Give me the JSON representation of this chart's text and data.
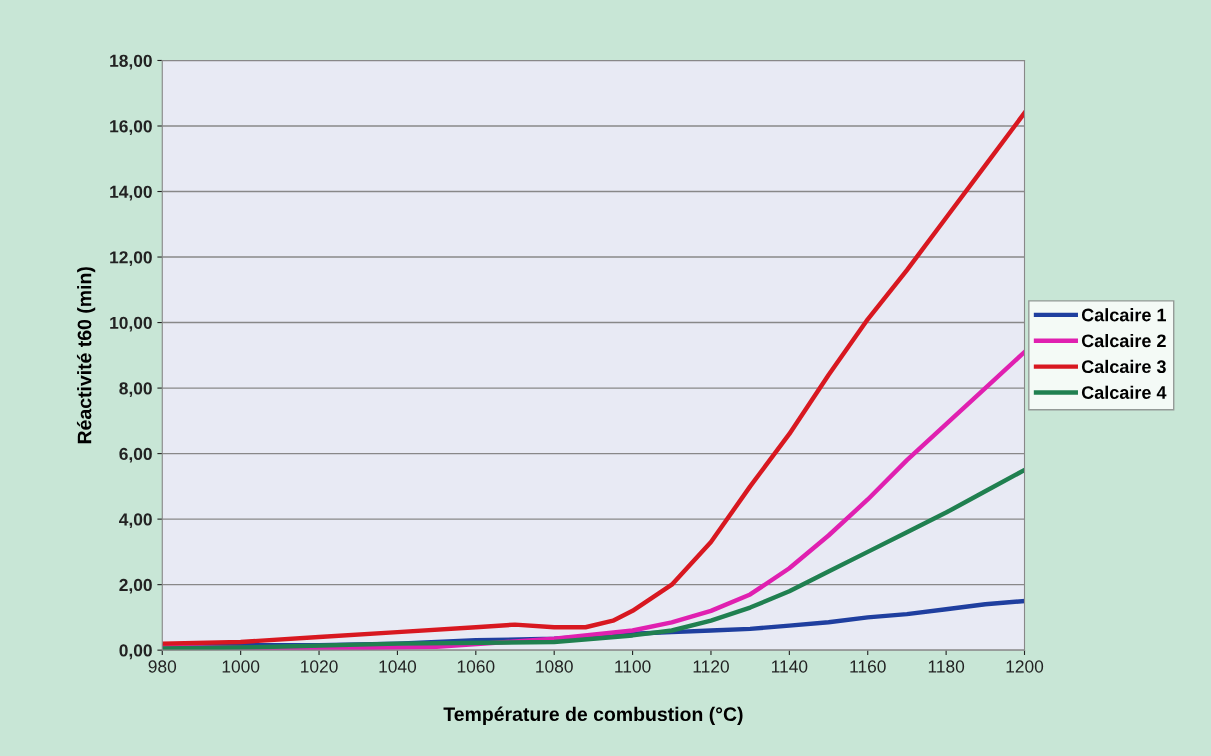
{
  "chart_data": {
    "type": "line",
    "xlabel": "Température de combustion (°C)",
    "ylabel": "Réactivité t60 (min)",
    "xlim": [
      980,
      1200
    ],
    "xticks": [
      980,
      1000,
      1020,
      1040,
      1060,
      1080,
      1100,
      1120,
      1140,
      1160,
      1180,
      1200
    ],
    "ylim": [
      0,
      18
    ],
    "yticks": [
      {
        "value": 0,
        "label": "0,00"
      },
      {
        "value": 2,
        "label": "2,00"
      },
      {
        "value": 4,
        "label": "4,00"
      },
      {
        "value": 6,
        "label": "6,00"
      },
      {
        "value": 8,
        "label": "8,00"
      },
      {
        "value": 10,
        "label": "10,00"
      },
      {
        "value": 12,
        "label": "12,00"
      },
      {
        "value": 14,
        "label": "14,00"
      },
      {
        "value": 16,
        "label": "16,00"
      },
      {
        "value": 18,
        "label": "18,00"
      }
    ],
    "grid": "y",
    "legend": "right",
    "marker": "none",
    "line_style": "solid",
    "series": [
      {
        "name": "Calcaire 1",
        "color": "#1f3f9f",
        "x": [
          980,
          1020,
          1040,
          1060,
          1080,
          1100,
          1110,
          1120,
          1130,
          1140,
          1150,
          1160,
          1170,
          1180,
          1190,
          1200
        ],
        "values": [
          0.15,
          0.15,
          0.2,
          0.3,
          0.35,
          0.5,
          0.55,
          0.6,
          0.65,
          0.75,
          0.85,
          1.0,
          1.1,
          1.25,
          1.4,
          1.5
        ]
      },
      {
        "name": "Calcaire 2",
        "color": "#e020b0",
        "x": [
          980,
          1020,
          1050,
          1080,
          1100,
          1110,
          1120,
          1130,
          1140,
          1150,
          1160,
          1170,
          1180,
          1190,
          1200
        ],
        "values": [
          0.1,
          0.05,
          0.1,
          0.35,
          0.6,
          0.85,
          1.2,
          1.7,
          2.5,
          3.5,
          4.6,
          5.8,
          6.9,
          8.0,
          9.1
        ]
      },
      {
        "name": "Calcaire 3",
        "color": "#d81820",
        "x": [
          980,
          1000,
          1020,
          1040,
          1060,
          1070,
          1080,
          1088,
          1095,
          1100,
          1110,
          1120,
          1130,
          1140,
          1150,
          1160,
          1170,
          1180,
          1190,
          1200
        ],
        "values": [
          0.2,
          0.25,
          0.4,
          0.55,
          0.7,
          0.78,
          0.7,
          0.7,
          0.9,
          1.2,
          2.0,
          3.3,
          5.0,
          6.6,
          8.4,
          10.1,
          11.6,
          13.2,
          14.8,
          16.4
        ]
      },
      {
        "name": "Calcaire 4",
        "color": "#208050",
        "x": [
          980,
          1000,
          1040,
          1080,
          1100,
          1110,
          1120,
          1130,
          1140,
          1150,
          1160,
          1170,
          1180,
          1190,
          1200
        ],
        "values": [
          0.05,
          0.08,
          0.2,
          0.25,
          0.45,
          0.6,
          0.9,
          1.3,
          1.8,
          2.4,
          3.0,
          3.6,
          4.2,
          4.85,
          5.5
        ]
      }
    ]
  }
}
